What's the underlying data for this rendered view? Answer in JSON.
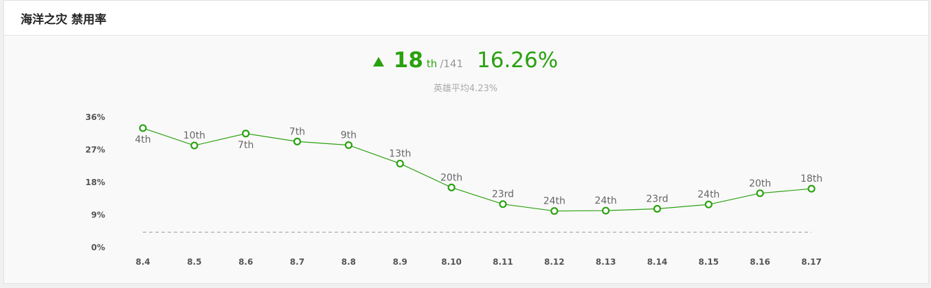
{
  "header": {
    "title": "海洋之灾 禁用率"
  },
  "summary": {
    "rank": "18",
    "rank_suffix": "th",
    "rank_total": "/141",
    "rate": "16.26%",
    "average_text": "英雄平均4.23%",
    "trend_icon": "triangle-up-icon"
  },
  "colors": {
    "accent": "#2aa10f",
    "average_line": "#999999"
  },
  "chart_data": {
    "type": "line",
    "title": "",
    "xlabel": "",
    "ylabel": "",
    "ylim": [
      0,
      36
    ],
    "yticks": [
      "0%",
      "9%",
      "18%",
      "27%",
      "36%"
    ],
    "categories": [
      "8.4",
      "8.5",
      "8.6",
      "8.7",
      "8.8",
      "8.9",
      "8.10",
      "8.11",
      "8.12",
      "8.13",
      "8.14",
      "8.15",
      "8.16",
      "8.17"
    ],
    "series": [
      {
        "values": [
          33.0,
          28.2,
          31.5,
          29.3,
          28.3,
          23.2,
          16.6,
          12.0,
          10.1,
          10.2,
          10.7,
          11.9,
          15.0,
          16.26
        ],
        "labels": [
          "4th",
          "10th",
          "7th",
          "7th",
          "9th",
          "13th",
          "20th",
          "23rd",
          "24th",
          "24th",
          "23rd",
          "24th",
          "20th",
          "18th"
        ],
        "label_positions": [
          "below",
          "above",
          "below",
          "above",
          "above",
          "above",
          "above",
          "above",
          "above",
          "above",
          "above",
          "above",
          "above",
          "above"
        ]
      }
    ],
    "reference_line": {
      "value": 4.23,
      "style": "dashed"
    },
    "grid": false,
    "legend": "none"
  }
}
